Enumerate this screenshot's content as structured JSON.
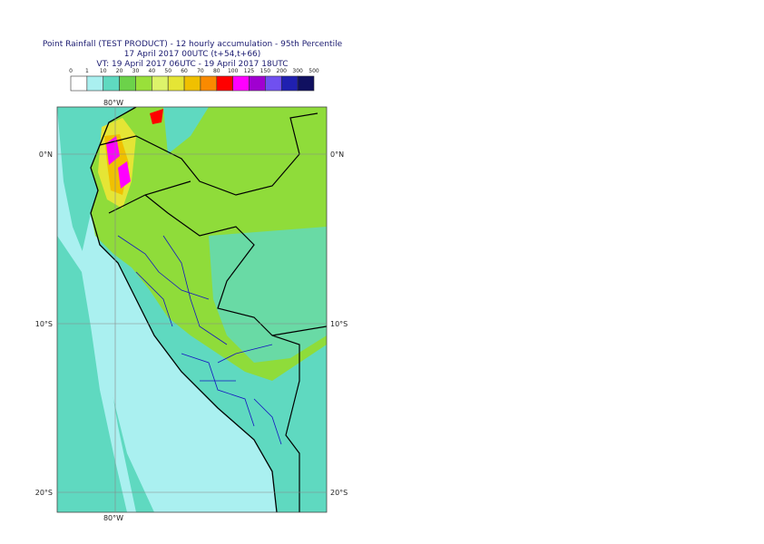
{
  "header": {
    "title": "Point Rainfall (TEST PRODUCT) - 12 hourly accumulation - 95th Percentile",
    "base": "17 April 2017 00UTC (t+54,t+66)",
    "valid": "VT: 19 April 2017 06UTC - 19 April 2017 18UTC"
  },
  "legend": {
    "labels": [
      "0",
      "1",
      "10",
      "20",
      "30",
      "40",
      "50",
      "60",
      "70",
      "80",
      "100",
      "125",
      "150",
      "200",
      "300",
      "500"
    ],
    "colors": [
      "#ffffff",
      "#aaf0f0",
      "#5fd9c0",
      "#6cd24a",
      "#99e03a",
      "#ddf36a",
      "#e5e535",
      "#f0c000",
      "#fa8a00",
      "#ff0000",
      "#ff00ff",
      "#a000d0",
      "#7050f0",
      "#2020b0",
      "#101060"
    ]
  },
  "map": {
    "lon_labels": [
      "80°W"
    ],
    "lat_labels": [
      "0°N",
      "10°S",
      "20°S"
    ]
  }
}
